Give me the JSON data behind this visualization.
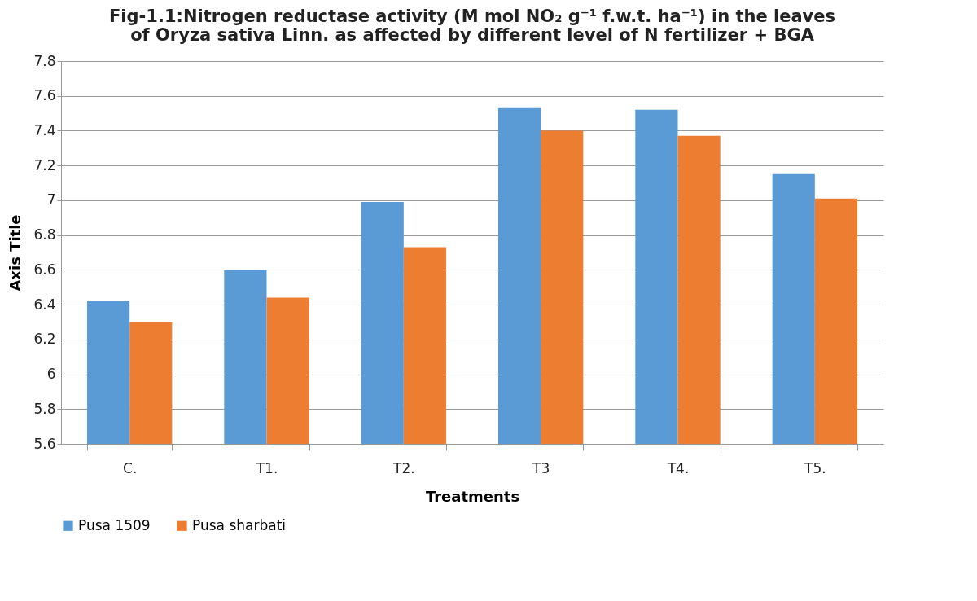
{
  "chart_data": {
    "type": "bar",
    "title": "Fig-1.1:Nitrogen reductase activity (M mol NO₂ g⁻¹ f.w.t. ha⁻¹) in the leaves of Oryza sativa Linn. as affected by different level of N fertilizer + BGA",
    "xlabel": "Treatments",
    "ylabel": "Axis Title",
    "categories": [
      "C.",
      "T1.",
      "T2.",
      "T3",
      "T4.",
      "T5."
    ],
    "series": [
      {
        "name": "Pusa 1509",
        "color": "#5b9bd5",
        "values": [
          6.42,
          6.6,
          6.99,
          7.53,
          7.52,
          7.15
        ]
      },
      {
        "name": "Pusa sharbati",
        "color": "#ed7d31",
        "values": [
          6.3,
          6.44,
          6.73,
          7.4,
          7.37,
          7.01
        ]
      }
    ],
    "ylim": [
      5.6,
      7.8
    ],
    "yticks": [
      5.6,
      5.8,
      6,
      6.2,
      6.4,
      6.6,
      6.8,
      7,
      7.2,
      7.4,
      7.6,
      7.8
    ],
    "grid": "y",
    "legend": "bottom"
  }
}
